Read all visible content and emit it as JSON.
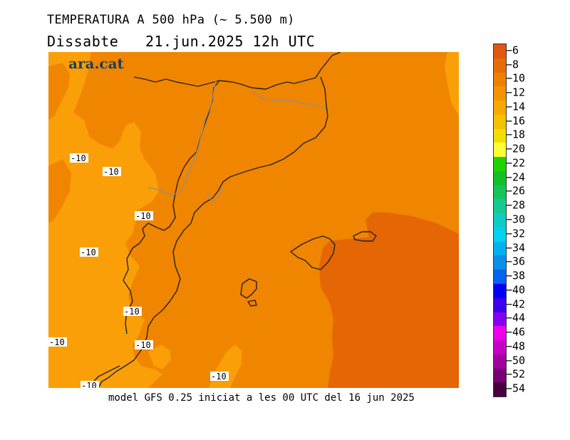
{
  "header": {
    "title": "TEMPERATURA A 500 hPa (~ 5.500 m)",
    "subtitle": "Dissabte   21.jun.2025 12h UTC"
  },
  "brand": {
    "logo_text": "ara.cat"
  },
  "footer": {
    "model_note": "model GFS 0.25 iniciat a les 00 UTC del 16 jun 2025"
  },
  "map": {
    "region": "Catalunya i Balears",
    "isoline_labels": [
      "-10",
      "-10",
      "-10",
      "-10",
      "-10",
      "-10",
      "-10",
      "-10",
      "-10"
    ],
    "fill_colors": {
      "light": "#fa9f07",
      "mid": "#f08500",
      "dark": "#e46604"
    }
  },
  "legend": {
    "labels": [
      "-6",
      "-8",
      "-10",
      "-12",
      "-14",
      "-16",
      "-18",
      "-20",
      "-22",
      "-24",
      "-26",
      "-28",
      "-30",
      "-32",
      "-34",
      "-36",
      "-38",
      "-40",
      "-42",
      "-44",
      "-46",
      "-48",
      "-50",
      "-52",
      "-54"
    ],
    "colors": [
      "#e25611",
      "#e86c04",
      "#ee8000",
      "#f39300",
      "#f6a900",
      "#f5c200",
      "#f0df00",
      "#ffff33",
      "#1ed400",
      "#14c027",
      "#16c558",
      "#17c990",
      "#10cbc4",
      "#00d2ef",
      "#00b2ee",
      "#0891ea",
      "#0064f0",
      "#0000f0",
      "#3b00ee",
      "#8400f0",
      "#ee00ee",
      "#c800c6",
      "#a2009e",
      "#780074",
      "#480042"
    ]
  }
}
